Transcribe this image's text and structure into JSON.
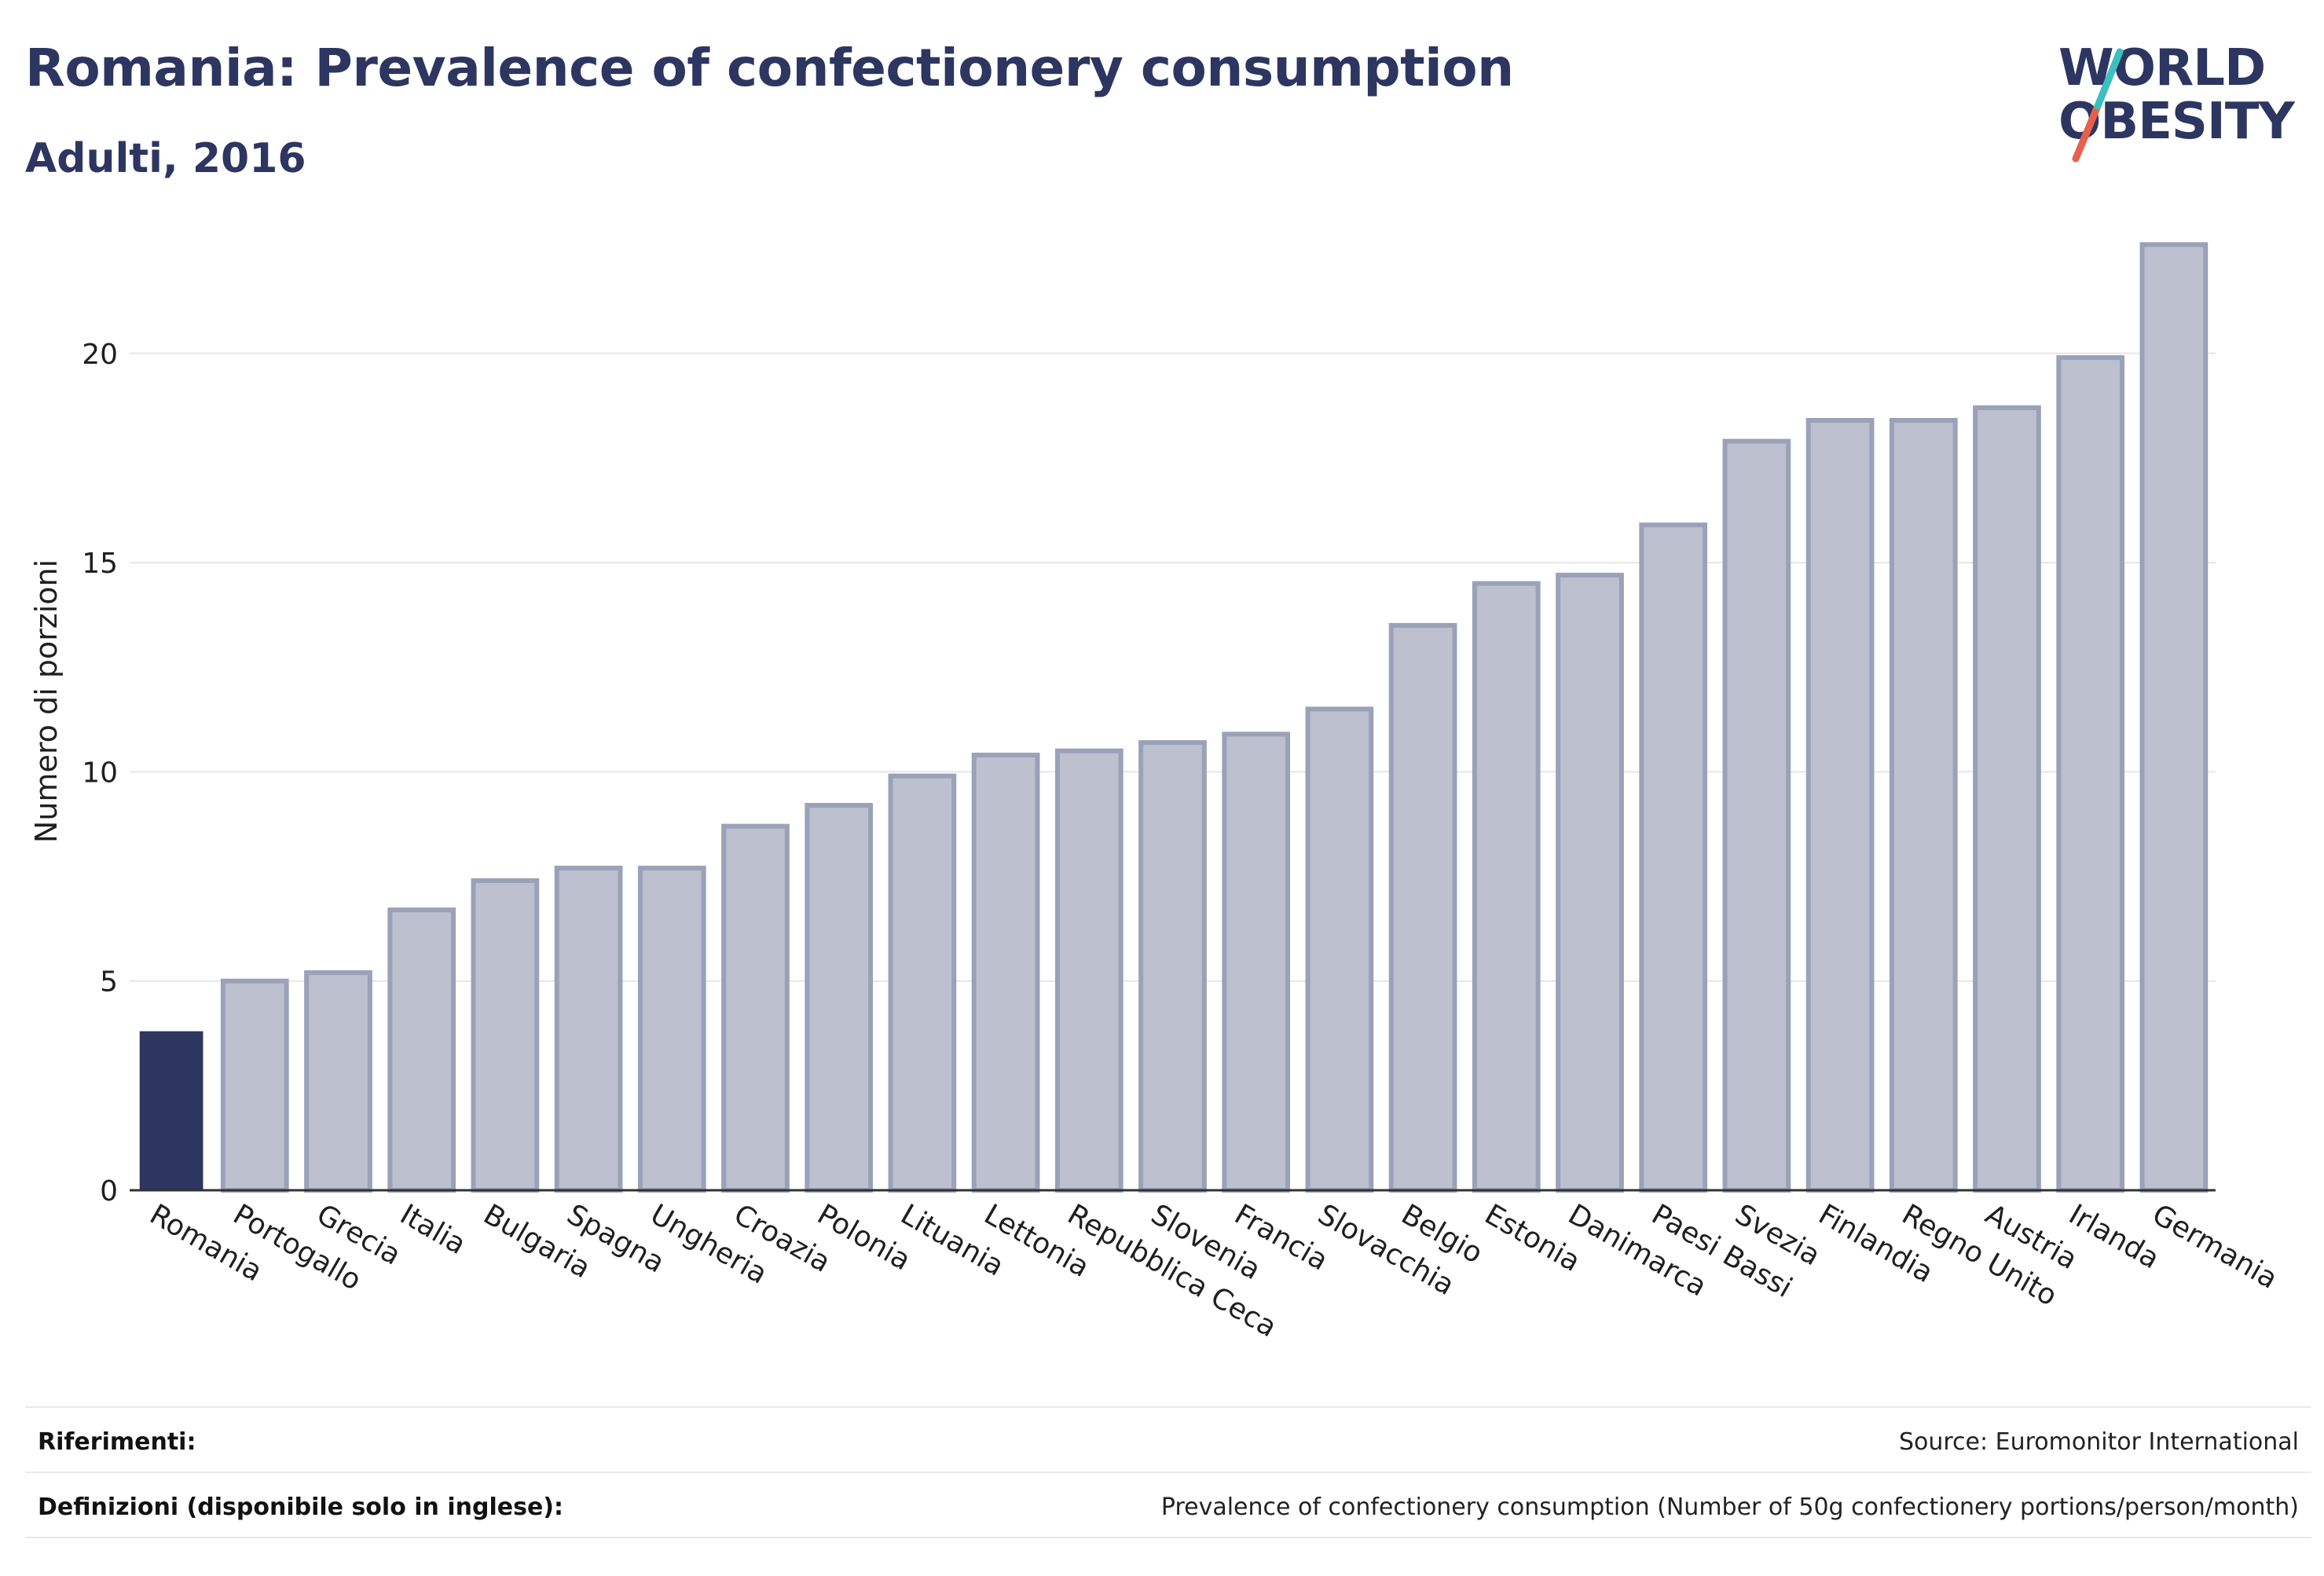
{
  "header": {
    "title": "Romania: Prevalence of confectionery consumption",
    "subtitle": "Adulti, 2016",
    "logo_line1": "WORLD",
    "logo_line2": "OBESITY"
  },
  "footer": {
    "references_label": "Riferimenti:",
    "references_value": "Source: Euromonitor International",
    "definitions_label": "Definizioni (disponibile solo in inglese):",
    "definitions_value": "Prevalence of confectionery consumption (Number of 50g confectionery portions/person/month)"
  },
  "colors": {
    "highlight": "#2d3561",
    "bar_fill": "#bcc0cf",
    "bar_stroke": "#9aa1b8",
    "grid": "#e6e6e6",
    "axis": "#333333",
    "logo_teal": "#3cbfbf",
    "logo_coral": "#e8604c"
  },
  "chart_data": {
    "type": "bar",
    "ylabel": "Numero di porzioni",
    "xlabel": "",
    "ylim": [
      0,
      23
    ],
    "yticks": [
      0,
      5,
      10,
      15,
      20
    ],
    "grid": true,
    "highlight": "Romania",
    "categories": [
      "Romania",
      "Portogallo",
      "Grecia",
      "Italia",
      "Bulgaria",
      "Spagna",
      "Ungheria",
      "Croazia",
      "Polonia",
      "Lituania",
      "Lettonia",
      "Repubblica Ceca",
      "Slovenia",
      "Francia",
      "Slovacchia",
      "Belgio",
      "Estonia",
      "Danimarca",
      "Paesi Bassi",
      "Svezia",
      "Finlandia",
      "Regno Unito",
      "Austria",
      "Irlanda",
      "Germania"
    ],
    "values": [
      3.8,
      5.0,
      5.2,
      6.7,
      7.4,
      7.7,
      7.7,
      8.7,
      9.2,
      9.9,
      10.4,
      10.5,
      10.7,
      10.9,
      11.5,
      13.5,
      14.5,
      14.7,
      15.9,
      17.9,
      18.4,
      18.4,
      18.7,
      19.9,
      22.6
    ]
  }
}
